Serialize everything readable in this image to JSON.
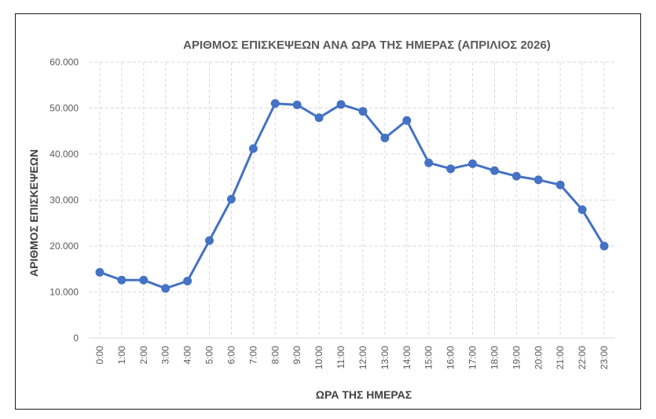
{
  "chart_data": {
    "type": "line",
    "title": "ΑΡΙΘΜΟΣ ΕΠΙΣΚΕΨΕΩΝ ΑΝΑ ΩΡΑ ΤΗΣ ΗΜΕΡΑΣ (ΑΠΡΙΛΙΟΣ 2026)",
    "xlabel": "ΩΡΑ ΤΗΣ ΗΜΕΡΑΣ",
    "ylabel": "ΑΡΙΘΜΟΣ ΕΠΙΣΚΕΨΕΩΝ",
    "categories": [
      "0:00",
      "1:00",
      "2:00",
      "3:00",
      "4:00",
      "5:00",
      "6:00",
      "7:00",
      "8:00",
      "9:00",
      "10:00",
      "11:00",
      "12:00",
      "13:00",
      "14:00",
      "15:00",
      "16:00",
      "17:00",
      "18:00",
      "19:00",
      "20:00",
      "21:00",
      "22:00",
      "23:00"
    ],
    "series": [
      {
        "values": [
          14300,
          12600,
          12600,
          10800,
          12400,
          21200,
          30200,
          41200,
          51000,
          50700,
          47900,
          50800,
          49300,
          43500,
          47300,
          38100,
          36800,
          37900,
          36400,
          35200,
          34400,
          33300,
          27900,
          20000
        ],
        "color": "#4472c4"
      }
    ],
    "ylim": [
      0,
      60000
    ],
    "yticks": [
      0,
      10000,
      20000,
      30000,
      40000,
      50000,
      60000
    ],
    "ytick_labels": [
      "0",
      "10.000",
      "20.000",
      "30.000",
      "40.000",
      "50.000",
      "60.000"
    ],
    "grid": true,
    "legend": "none"
  }
}
